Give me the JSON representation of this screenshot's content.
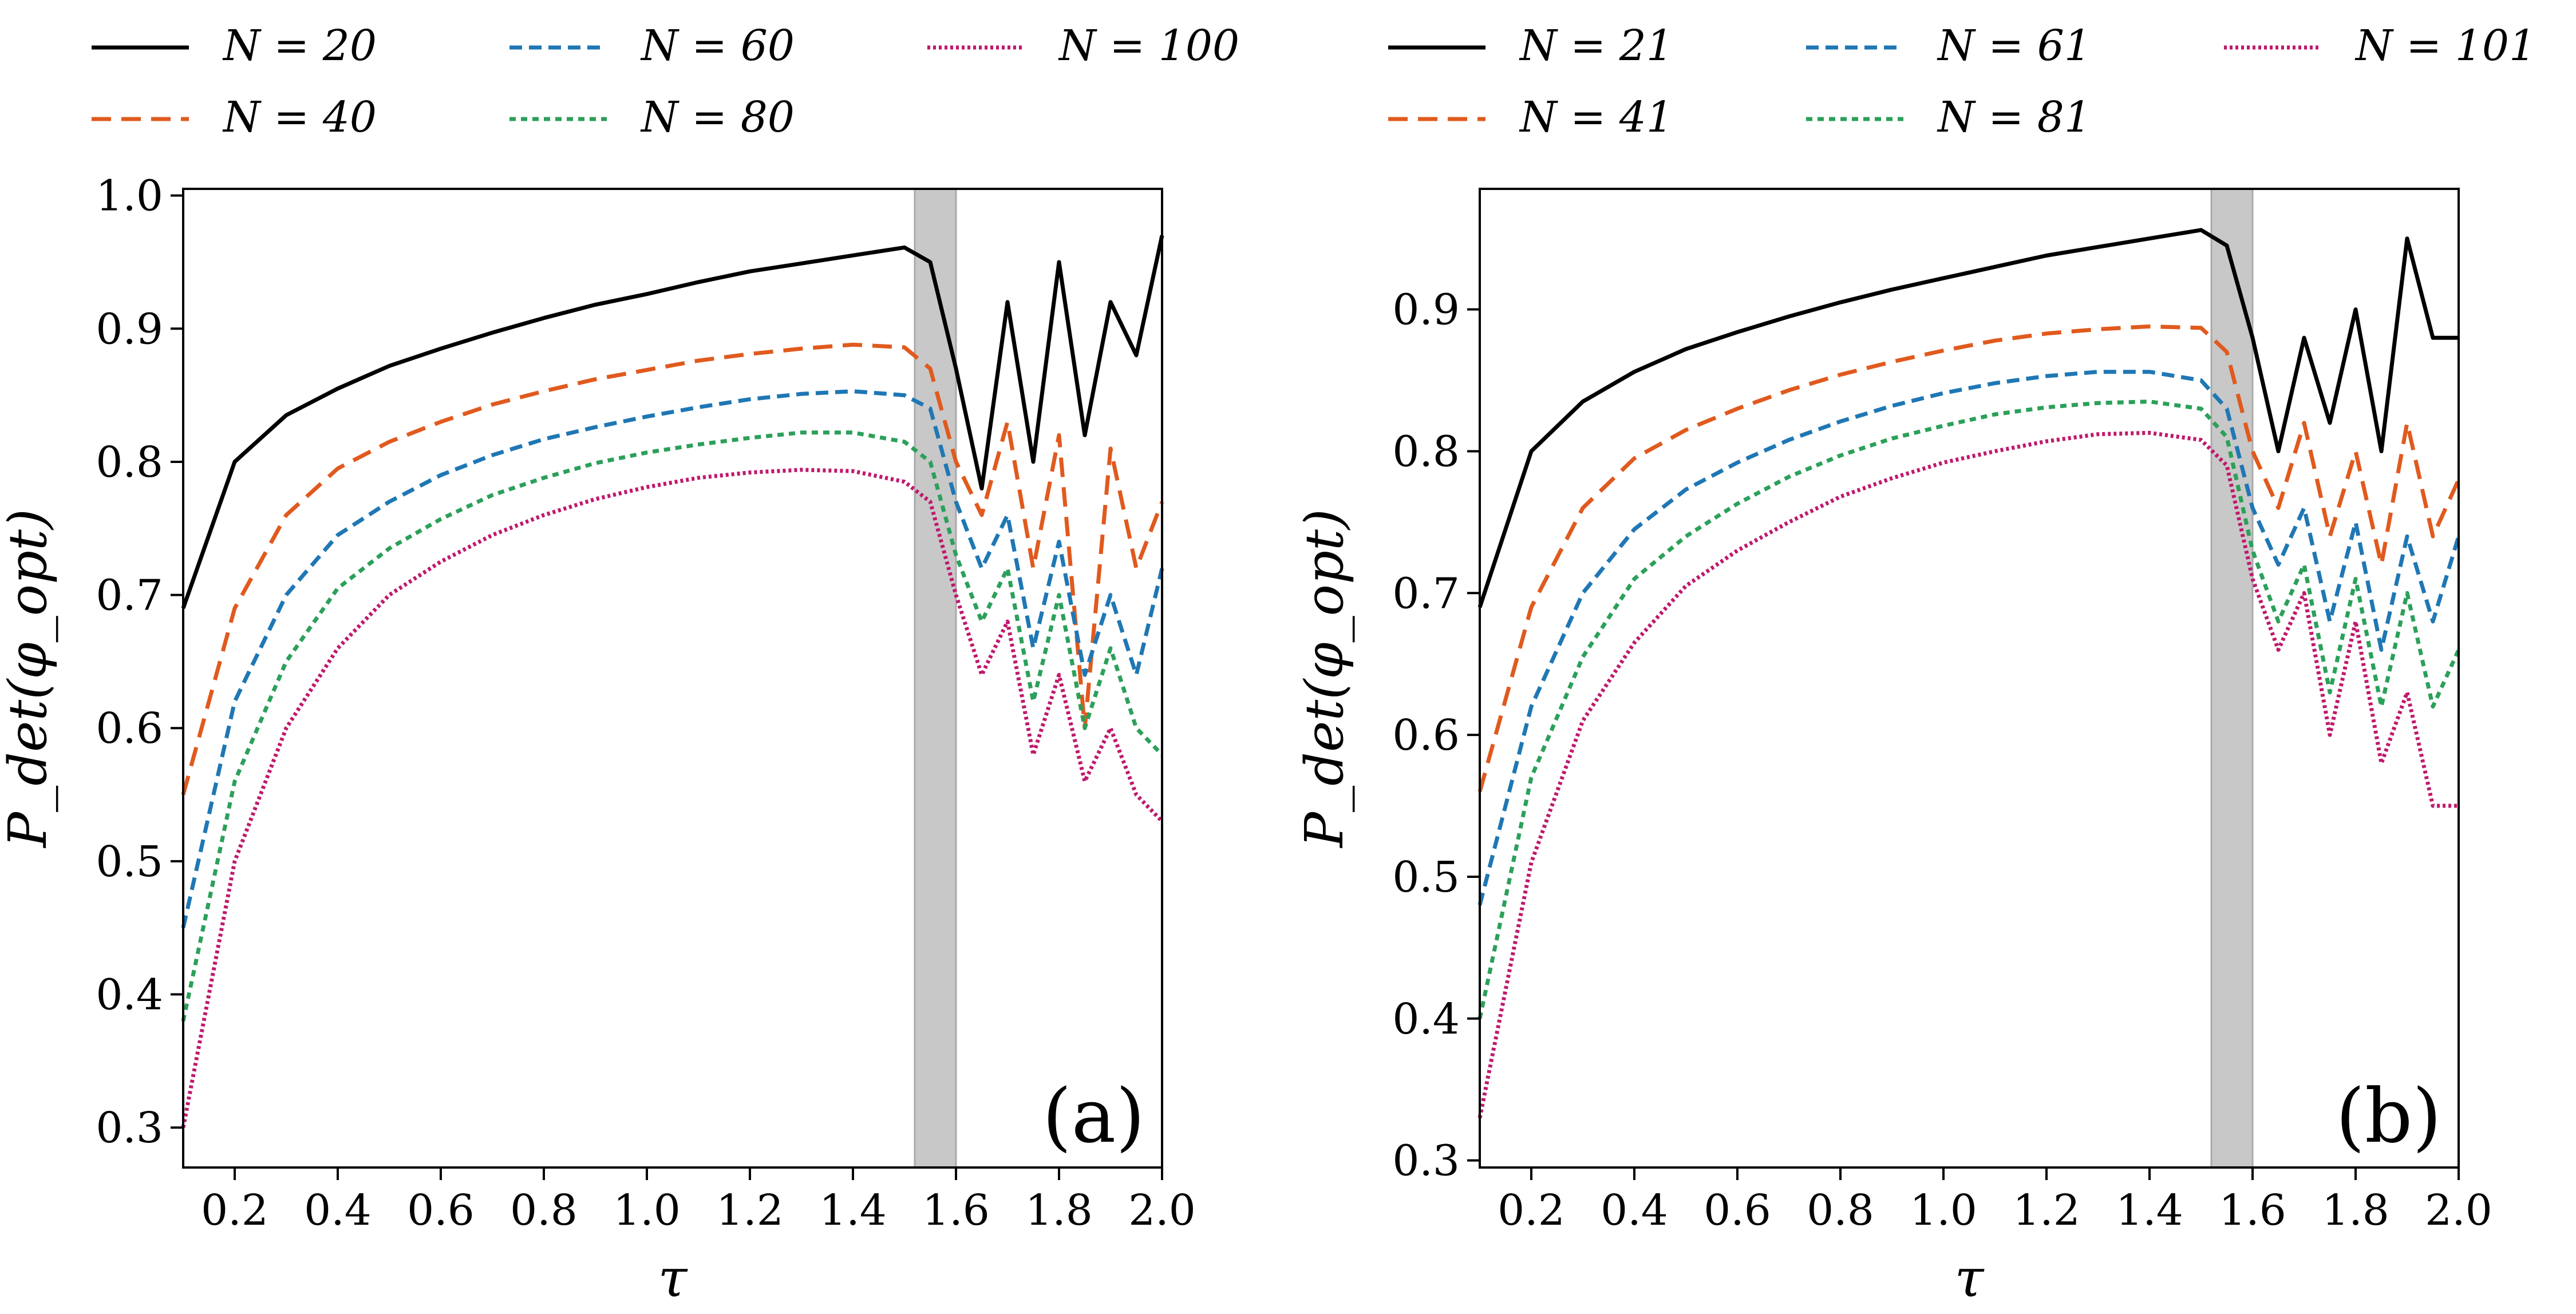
{
  "chart_data": [
    {
      "type": "line",
      "panel_label": "(a)",
      "xlabel": "τ",
      "ylabel": "P_det(φ_opt)",
      "xlim": [
        0.1,
        2.0
      ],
      "ylim": [
        0.27,
        1.005
      ],
      "xticks": [
        "0.2",
        "0.4",
        "0.6",
        "0.8",
        "1.0",
        "1.2",
        "1.4",
        "1.6",
        "1.8",
        "2.0"
      ],
      "yticks": [
        "0.3",
        "0.4",
        "0.5",
        "0.6",
        "0.7",
        "0.8",
        "0.9",
        "1.0"
      ],
      "shaded_band": [
        1.52,
        1.6
      ],
      "legend_placement": "top",
      "x": [
        0.1,
        0.2,
        0.3,
        0.4,
        0.5,
        0.6,
        0.7,
        0.8,
        0.9,
        1.0,
        1.1,
        1.2,
        1.3,
        1.4,
        1.5,
        1.55,
        1.6,
        1.65,
        1.7,
        1.75,
        1.8,
        1.85,
        1.9,
        1.95,
        2.0
      ],
      "series": [
        {
          "name": "N = 20",
          "color": "#000000",
          "dash": "solid",
          "values": [
            0.69,
            0.8,
            0.835,
            0.855,
            0.872,
            0.885,
            0.897,
            0.908,
            0.918,
            0.926,
            0.935,
            0.943,
            0.949,
            0.955,
            0.961,
            0.95,
            0.87,
            0.78,
            0.92,
            0.8,
            0.95,
            0.82,
            0.92,
            0.88,
            0.97
          ]
        },
        {
          "name": "N = 40",
          "color": "#e05a1e",
          "dash": "longdash",
          "values": [
            0.55,
            0.69,
            0.76,
            0.795,
            0.815,
            0.83,
            0.843,
            0.853,
            0.862,
            0.869,
            0.876,
            0.881,
            0.885,
            0.888,
            0.886,
            0.87,
            0.8,
            0.76,
            0.83,
            0.72,
            0.82,
            0.6,
            0.81,
            0.72,
            0.77
          ]
        },
        {
          "name": "N = 60",
          "color": "#1f77b4",
          "dash": "dash",
          "values": [
            0.45,
            0.62,
            0.7,
            0.745,
            0.77,
            0.79,
            0.805,
            0.817,
            0.826,
            0.834,
            0.841,
            0.847,
            0.851,
            0.853,
            0.85,
            0.84,
            0.77,
            0.72,
            0.76,
            0.66,
            0.74,
            0.64,
            0.7,
            0.64,
            0.72
          ]
        },
        {
          "name": "N = 80",
          "color": "#2ca05a",
          "dash": "dot",
          "values": [
            0.38,
            0.56,
            0.65,
            0.705,
            0.735,
            0.757,
            0.775,
            0.788,
            0.799,
            0.807,
            0.813,
            0.818,
            0.822,
            0.822,
            0.815,
            0.8,
            0.73,
            0.68,
            0.72,
            0.62,
            0.7,
            0.6,
            0.66,
            0.6,
            0.58
          ]
        },
        {
          "name": "N = 100",
          "color": "#c0186c",
          "dash": "finedot",
          "values": [
            0.3,
            0.5,
            0.6,
            0.66,
            0.7,
            0.725,
            0.745,
            0.76,
            0.772,
            0.781,
            0.788,
            0.792,
            0.794,
            0.793,
            0.785,
            0.77,
            0.7,
            0.64,
            0.68,
            0.58,
            0.64,
            0.56,
            0.6,
            0.55,
            0.53
          ]
        }
      ]
    },
    {
      "type": "line",
      "panel_label": "(b)",
      "xlabel": "τ",
      "ylabel": "P_det(φ_opt)",
      "xlim": [
        0.1,
        2.0
      ],
      "ylim": [
        0.295,
        0.985
      ],
      "xticks": [
        "0.2",
        "0.4",
        "0.6",
        "0.8",
        "1.0",
        "1.2",
        "1.4",
        "1.6",
        "1.8",
        "2.0"
      ],
      "yticks": [
        "0.3",
        "0.4",
        "0.5",
        "0.6",
        "0.7",
        "0.8",
        "0.9"
      ],
      "shaded_band": [
        1.52,
        1.6
      ],
      "legend_placement": "top",
      "x": [
        0.1,
        0.2,
        0.3,
        0.4,
        0.5,
        0.6,
        0.7,
        0.8,
        0.9,
        1.0,
        1.1,
        1.2,
        1.3,
        1.4,
        1.5,
        1.55,
        1.6,
        1.65,
        1.7,
        1.75,
        1.8,
        1.85,
        1.9,
        1.95,
        2.0
      ],
      "series": [
        {
          "name": "N = 21",
          "color": "#000000",
          "dash": "solid",
          "values": [
            0.69,
            0.8,
            0.835,
            0.856,
            0.872,
            0.884,
            0.895,
            0.905,
            0.914,
            0.922,
            0.93,
            0.938,
            0.944,
            0.95,
            0.956,
            0.945,
            0.88,
            0.8,
            0.88,
            0.82,
            0.9,
            0.8,
            0.95,
            0.88,
            0.88
          ]
        },
        {
          "name": "N = 41",
          "color": "#e05a1e",
          "dash": "longdash",
          "values": [
            0.56,
            0.69,
            0.76,
            0.795,
            0.815,
            0.83,
            0.843,
            0.854,
            0.863,
            0.871,
            0.878,
            0.883,
            0.886,
            0.888,
            0.887,
            0.87,
            0.8,
            0.76,
            0.82,
            0.74,
            0.8,
            0.72,
            0.82,
            0.74,
            0.78
          ]
        },
        {
          "name": "N = 61",
          "color": "#1f77b4",
          "dash": "dash",
          "values": [
            0.48,
            0.62,
            0.7,
            0.745,
            0.773,
            0.792,
            0.808,
            0.821,
            0.832,
            0.841,
            0.848,
            0.853,
            0.856,
            0.856,
            0.85,
            0.83,
            0.76,
            0.72,
            0.76,
            0.68,
            0.75,
            0.66,
            0.74,
            0.68,
            0.74
          ]
        },
        {
          "name": "N = 81",
          "color": "#2ca05a",
          "dash": "dot",
          "values": [
            0.4,
            0.57,
            0.655,
            0.71,
            0.74,
            0.763,
            0.782,
            0.797,
            0.809,
            0.818,
            0.826,
            0.831,
            0.834,
            0.835,
            0.83,
            0.81,
            0.73,
            0.68,
            0.72,
            0.63,
            0.71,
            0.62,
            0.7,
            0.62,
            0.66
          ]
        },
        {
          "name": "N = 101",
          "color": "#c0186c",
          "dash": "finedot",
          "values": [
            0.33,
            0.51,
            0.61,
            0.665,
            0.705,
            0.73,
            0.75,
            0.768,
            0.781,
            0.792,
            0.8,
            0.807,
            0.812,
            0.813,
            0.808,
            0.79,
            0.71,
            0.66,
            0.7,
            0.6,
            0.68,
            0.58,
            0.63,
            0.55,
            0.55
          ]
        }
      ]
    }
  ]
}
